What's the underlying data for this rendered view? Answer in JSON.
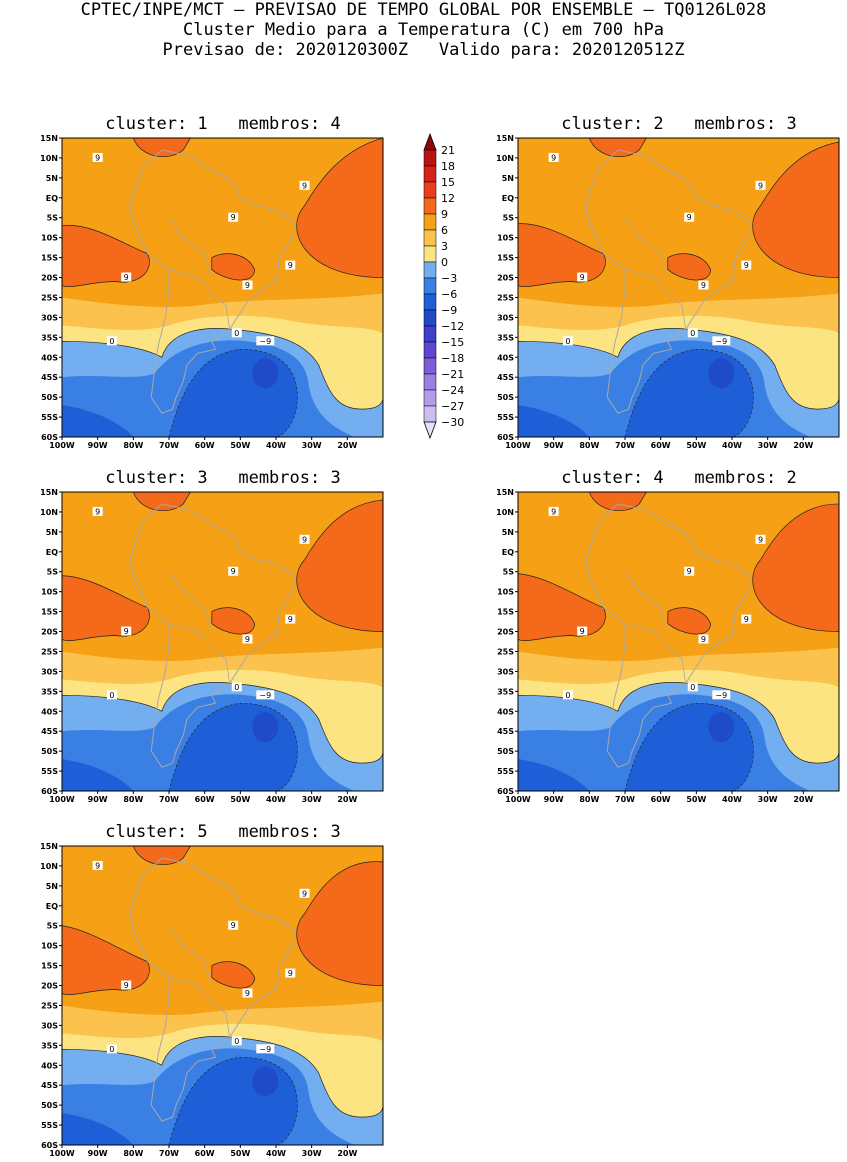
{
  "header": {
    "line1": "CPTEC/INPE/MCT – PREVISAO DE TEMPO GLOBAL POR ENSEMBLE – TQ0126L028",
    "line2": "Cluster Medio para a Temperatura (C) em 700 hPa",
    "line3": "Previsao de: 2020120300Z   Valido para: 2020120512Z"
  },
  "colors": {
    "c_lt_-30": "#e6defa",
    "c_-30_-27": "#cbbcf1",
    "c_-27_-24": "#b39ce8",
    "c_-24_-21": "#9a80e0",
    "c_-21_-18": "#7d5ed6",
    "c_-18_-15": "#5f48cf",
    "c_-15_-12": "#3f3fcd",
    "c_-12_-9": "#1f4bc9",
    "c_-9_-6": "#1e5fd8",
    "c_-6_-3": "#3a7fe4",
    "c_-3_0": "#73aef0",
    "c_0_3": "#fde482",
    "c_3_6": "#fcc24e",
    "c_6_9": "#f6a016",
    "c_9_12": "#f46a1a",
    "c_12_15": "#e8401c",
    "c_15_18": "#d4241a",
    "c_18_21": "#b81414",
    "c_gt_21": "#8a0a0a"
  },
  "chart_data": {
    "type": "heatmap",
    "variable": "Temperature (C) at 700 hPa",
    "colorbar": {
      "levels": [
        21,
        18,
        15,
        12,
        9,
        6,
        3,
        0,
        -3,
        -6,
        -9,
        -12,
        -15,
        -18,
        -21,
        -24,
        -27,
        -30
      ],
      "level_labels": [
        "21",
        "18",
        "15",
        "12",
        "9",
        "6",
        "3",
        "0",
        "−3",
        "−6",
        "−9",
        "−12",
        "−15",
        "−18",
        "−21",
        "−24",
        "−27",
        "−30"
      ]
    },
    "axes": {
      "lon_range": [
        -100,
        -10
      ],
      "lat_range": [
        -60,
        15
      ],
      "x_ticks": [
        "100W",
        "90W",
        "80W",
        "70W",
        "60W",
        "50W",
        "40W",
        "30W",
        "20W"
      ],
      "x_tick_values": [
        -100,
        -90,
        -80,
        -70,
        -60,
        -50,
        -40,
        -30,
        -20
      ],
      "y_ticks": [
        "15N",
        "10N",
        "5N",
        "EQ",
        "5S",
        "10S",
        "15S",
        "20S",
        "25S",
        "30S",
        "35S",
        "40S",
        "45S",
        "50S",
        "55S",
        "60S"
      ],
      "y_tick_values": [
        15,
        10,
        5,
        0,
        -5,
        -10,
        -15,
        -20,
        -25,
        -30,
        -35,
        -40,
        -45,
        -50,
        -55,
        -60
      ]
    },
    "contour_labels": [
      "9",
      "0",
      "−9"
    ],
    "panels": [
      {
        "cluster": "1",
        "members": "4",
        "title": "cluster: 1   membros: 4"
      },
      {
        "cluster": "2",
        "members": "3",
        "title": "cluster: 2   membros: 3"
      },
      {
        "cluster": "3",
        "members": "3",
        "title": "cluster: 3   membros: 3"
      },
      {
        "cluster": "4",
        "members": "2",
        "title": "cluster: 4   membros: 2"
      },
      {
        "cluster": "5",
        "members": "3",
        "title": "cluster: 5   membros: 3"
      }
    ]
  }
}
